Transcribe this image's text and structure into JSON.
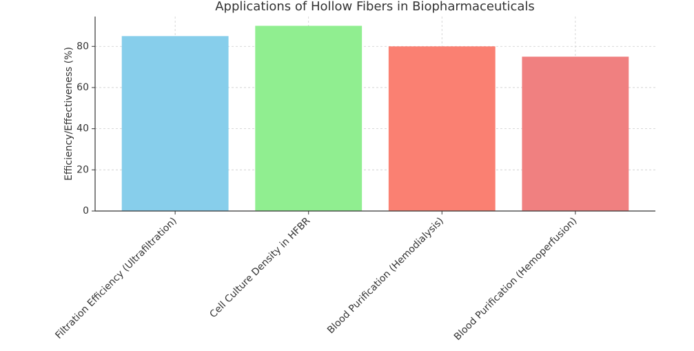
{
  "chart_data": {
    "type": "bar",
    "title": "Applications of Hollow Fibers in Biopharmaceuticals",
    "y_label": "Efficiency/Effectiveness (%)",
    "categories": [
      "Filtration Efficiency (Ultrafiltration)",
      "Cell Culture Density in HFBR",
      "Blood Purification (Hemodialysis)",
      "Blood Purification (Hemoperfusion)"
    ],
    "values": [
      85,
      90,
      80,
      75
    ],
    "colors": [
      "#87ceeb",
      "#90ee90",
      "#fa8072",
      "#f08080"
    ],
    "ylim": [
      0,
      94.5
    ],
    "yticks": [
      0,
      20,
      40,
      60,
      80
    ],
    "grid": true
  }
}
